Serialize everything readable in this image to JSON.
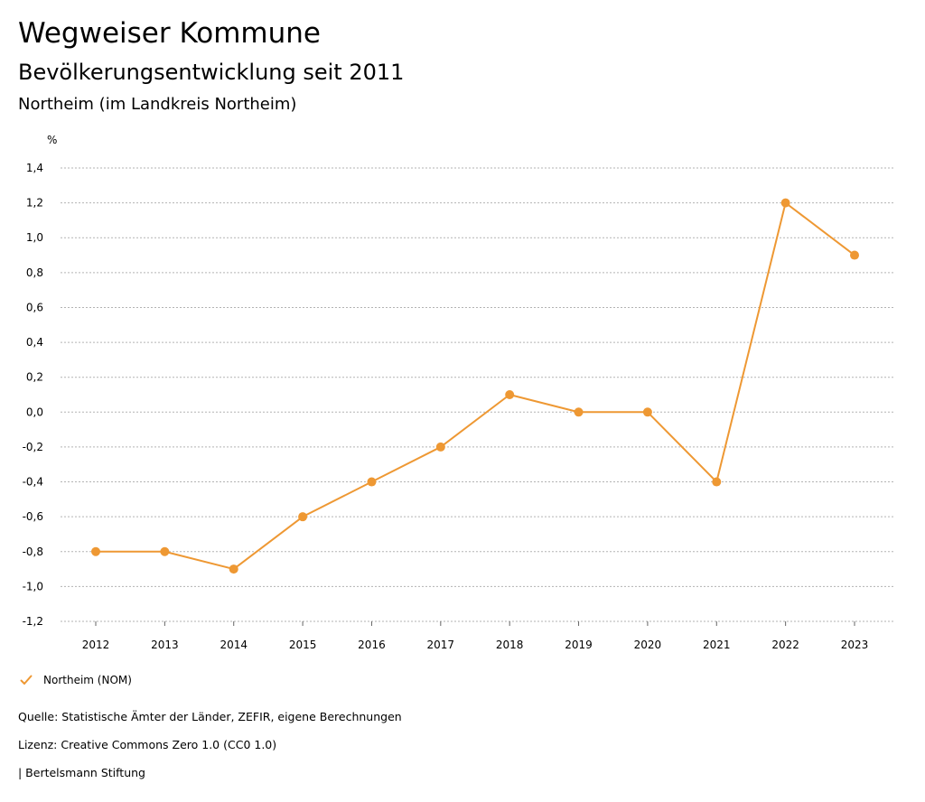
{
  "header": {
    "title": "Wegweiser Kommune",
    "subtitle": "Bevölkerungsentwicklung seit 2011",
    "region": "Northeim (im Landkreis Northeim)"
  },
  "chart_data": {
    "type": "line",
    "ylabel": "%",
    "categories": [
      "2012",
      "2013",
      "2014",
      "2015",
      "2016",
      "2017",
      "2018",
      "2019",
      "2020",
      "2021",
      "2022",
      "2023"
    ],
    "series": [
      {
        "name": "Northeim (NOM)",
        "color": "#ee9833",
        "values": [
          -0.8,
          -0.8,
          -0.9,
          -0.6,
          -0.4,
          -0.2,
          0.1,
          0.0,
          0.0,
          -0.4,
          1.2,
          0.9
        ]
      }
    ],
    "ylim": [
      -1.2,
      1.4
    ],
    "yticks": [
      1.4,
      1.2,
      1.0,
      0.8,
      0.6,
      0.4,
      0.2,
      0.0,
      -0.2,
      -0.4,
      -0.6,
      -0.8,
      -1.0,
      -1.2
    ],
    "ytick_labels": [
      "1,4",
      "1,2",
      "1,0",
      "0,8",
      "0,6",
      "0,4",
      "0,2",
      "0,0",
      "-0,2",
      "-0,4",
      "-0,6",
      "-0,8",
      "-1,0",
      "-1,2"
    ],
    "grid": true,
    "legend_position": "bottom-left"
  },
  "legend": {
    "label": "Northeim (NOM)",
    "icon": "check-icon"
  },
  "footer": {
    "source": "Quelle: Statistische Ämter der Länder, ZEFIR, eigene Berechnungen",
    "license": "Lizenz: Creative Commons Zero 1.0 (CC0 1.0)",
    "publisher": "| Bertelsmann Stiftung"
  }
}
